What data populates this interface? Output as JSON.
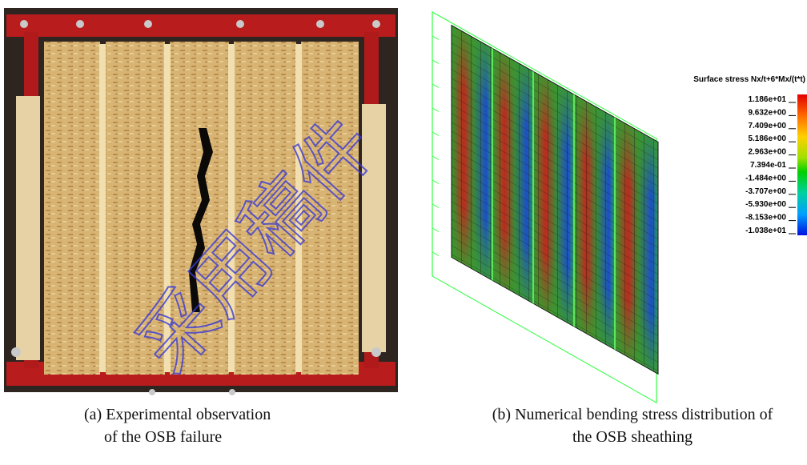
{
  "figure": {
    "panels": [
      {
        "caption": [
          "(a)    Experimental observation",
          "of the OSB failure"
        ]
      },
      {
        "legend": {
          "title": "Surface stress Nx/t+6*Mx/(t*t)",
          "labels": [
            "1.186e+01",
            "9.632e+00",
            "7.409e+00",
            "5.186e+00",
            "2.963e+00",
            "7.394e-01",
            "-1.484e+00",
            "-3.707e+00",
            "-5.930e+00",
            "-8.153e+00",
            "-1.038e+01"
          ]
        },
        "caption": [
          "(b) Numerical bending stress distribution of",
          "the OSB sheathing"
        ]
      }
    ],
    "watermark": "采用稿件"
  }
}
